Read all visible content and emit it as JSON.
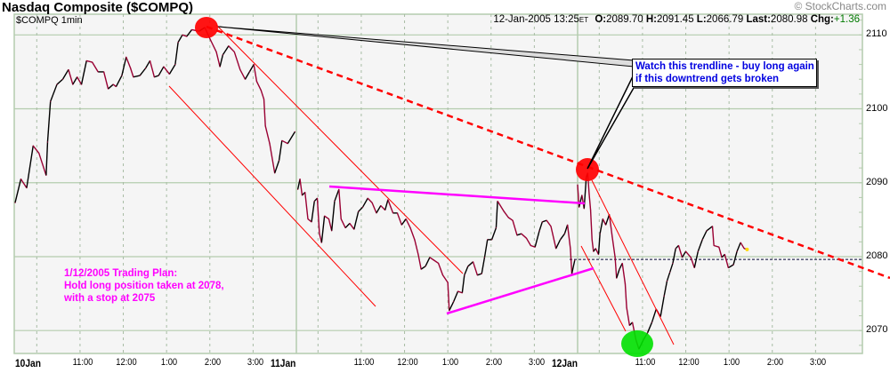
{
  "header": {
    "title": "Nasdaq Composite ($COMPQ)",
    "copyright": "© StockCharts.com"
  },
  "quote": {
    "symbol_interval": "$COMPQ 1min",
    "datetime": "12-Jan-2005 13:25",
    "tz": "ET",
    "open_label": "O:",
    "open": "2089.70",
    "high_label": "H:",
    "high": "2091.45",
    "low_label": "L:",
    "low": "2066.79",
    "last_label": "Last:",
    "last": "2080.98",
    "chg_label": "Chg:",
    "chg": "+1.36"
  },
  "annotations": {
    "callout": [
      "Watch this trendline - buy long again",
      "if this downtrend gets broken"
    ],
    "plan": [
      "1/12/2005 Trading Plan:",
      "Hold long position taken at 2078,",
      "with a stop at 2075"
    ]
  },
  "colors": {
    "up": "#000000",
    "down": "#990033",
    "grid": "#b4ccae",
    "plot_bg": "#f5f5f5",
    "trend_red": "#ff0000",
    "trend_magenta": "#ff00ff",
    "callout_text": "#0000e0",
    "change_positive": "#007a00",
    "low_marker": "#00e000"
  },
  "chart_data": {
    "type": "line",
    "title": "Nasdaq Composite ($COMPQ)",
    "interval": "1min",
    "ylim": [
      2066.9,
      2112.8
    ],
    "yticks": [
      2070,
      2080,
      2090,
      2100,
      2110
    ],
    "grid": true,
    "reference_line": 2079.62,
    "xticks": [
      {
        "label": "10Jan",
        "day": 0,
        "at": "09:30",
        "bold": true
      },
      {
        "label": "11:00",
        "day": 0,
        "at": "11:00"
      },
      {
        "label": "12:00",
        "day": 0,
        "at": "12:00"
      },
      {
        "label": "1:00",
        "day": 0,
        "at": "13:00"
      },
      {
        "label": "2:00",
        "day": 0,
        "at": "14:00"
      },
      {
        "label": "3:00",
        "day": 0,
        "at": "15:00"
      },
      {
        "label": "11Jan",
        "day": 1,
        "at": "09:30",
        "bold": true
      },
      {
        "label": "11:00",
        "day": 1,
        "at": "11:00"
      },
      {
        "label": "12:00",
        "day": 1,
        "at": "12:00"
      },
      {
        "label": "1:00",
        "day": 1,
        "at": "13:00"
      },
      {
        "label": "2:00",
        "day": 1,
        "at": "14:00"
      },
      {
        "label": "3:00",
        "day": 1,
        "at": "15:00"
      },
      {
        "label": "12Jan",
        "day": 2,
        "at": "09:30",
        "bold": true
      },
      {
        "label": "11:00",
        "day": 2,
        "at": "11:00"
      },
      {
        "label": "12:00",
        "day": 2,
        "at": "12:00"
      },
      {
        "label": "1:00",
        "day": 2,
        "at": "13:00"
      },
      {
        "label": "2:00",
        "day": 2,
        "at": "14:00"
      },
      {
        "label": "3:00",
        "day": 2,
        "at": "15:00"
      }
    ],
    "days": [
      {
        "date": "10-Jan",
        "points": [
          [
            "09:30",
            2087.3
          ],
          [
            "09:38",
            2090.5
          ],
          [
            "09:46",
            2089.3
          ],
          [
            "09:55",
            2095.0
          ],
          [
            "10:03",
            2094.0
          ],
          [
            "10:13",
            2091.0
          ],
          [
            "10:15",
            2095.5
          ],
          [
            "10:19",
            2101.0
          ],
          [
            "10:28",
            2103.3
          ],
          [
            "10:36",
            2104.0
          ],
          [
            "10:44",
            2105.3
          ],
          [
            "10:50",
            2103.3
          ],
          [
            "10:56",
            2104.3
          ],
          [
            "11:02",
            2103.3
          ],
          [
            "11:09",
            2106.5
          ],
          [
            "11:17",
            2106.3
          ],
          [
            "11:25",
            2105.0
          ],
          [
            "11:33",
            2105.0
          ],
          [
            "11:39",
            2102.7
          ],
          [
            "11:46",
            2103.3
          ],
          [
            "11:50",
            2103.0
          ],
          [
            "11:58",
            2104.5
          ],
          [
            "12:04",
            2107.0
          ],
          [
            "12:10",
            2105.5
          ],
          [
            "12:14",
            2104.3
          ],
          [
            "12:23",
            2104.5
          ],
          [
            "12:31",
            2105.5
          ],
          [
            "12:37",
            2106.5
          ],
          [
            "12:43",
            2104.3
          ],
          [
            "12:49",
            2104.5
          ],
          [
            "12:56",
            2105.7
          ],
          [
            "13:04",
            2104.7
          ],
          [
            "13:12",
            2106.0
          ],
          [
            "13:16",
            2109.0
          ],
          [
            "13:22",
            2110.0
          ],
          [
            "13:28",
            2109.8
          ],
          [
            "13:35",
            2110.7
          ],
          [
            "13:45",
            2110.5
          ],
          [
            "13:53",
            2111.0
          ],
          [
            "14:01",
            2109.3
          ],
          [
            "14:09",
            2107.7
          ],
          [
            "14:14",
            2105.7
          ],
          [
            "14:18",
            2107.3
          ],
          [
            "14:26",
            2108.5
          ],
          [
            "14:34",
            2107.7
          ],
          [
            "14:42",
            2105.3
          ],
          [
            "14:49",
            2104.0
          ],
          [
            "14:55",
            2105.0
          ],
          [
            "15:01",
            2106.0
          ],
          [
            "15:05",
            2103.7
          ],
          [
            "15:11",
            2102.5
          ],
          [
            "15:15",
            2101.3
          ],
          [
            "15:17",
            2097.7
          ],
          [
            "15:23",
            2095.3
          ],
          [
            "15:30",
            2091.3
          ],
          [
            "15:36",
            2093.0
          ],
          [
            "15:40",
            2095.7
          ],
          [
            "15:48",
            2095.3
          ],
          [
            "15:58",
            2096.9
          ]
        ]
      },
      {
        "date": "11-Jan",
        "points": [
          [
            "09:32",
            2089.1
          ],
          [
            "09:35",
            2090.5
          ],
          [
            "09:38",
            2088.3
          ],
          [
            "09:42",
            2088.7
          ],
          [
            "09:46",
            2085.1
          ],
          [
            "09:51",
            2084.7
          ],
          [
            "09:55",
            2087.5
          ],
          [
            "09:59",
            2087.9
          ],
          [
            "10:02",
            2083.1
          ],
          [
            "10:05",
            2081.9
          ],
          [
            "10:09",
            2085.5
          ],
          [
            "10:15",
            2085.1
          ],
          [
            "10:19",
            2083.5
          ],
          [
            "10:23",
            2087.5
          ],
          [
            "10:29",
            2089.1
          ],
          [
            "10:32",
            2085.1
          ],
          [
            "10:38",
            2083.9
          ],
          [
            "10:44",
            2084.5
          ],
          [
            "10:50",
            2083.7
          ],
          [
            "10:56",
            2086.1
          ],
          [
            "11:02",
            2086.7
          ],
          [
            "11:09",
            2087.9
          ],
          [
            "11:15",
            2087.3
          ],
          [
            "11:21",
            2085.9
          ],
          [
            "11:27",
            2086.9
          ],
          [
            "11:33",
            2086.3
          ],
          [
            "11:37",
            2087.7
          ],
          [
            "11:44",
            2085.9
          ],
          [
            "11:50",
            2085.9
          ],
          [
            "11:56",
            2084.3
          ],
          [
            "12:02",
            2085.1
          ],
          [
            "12:08",
            2083.9
          ],
          [
            "12:14",
            2082.3
          ],
          [
            "12:19",
            2080.3
          ],
          [
            "12:23",
            2078.3
          ],
          [
            "12:29",
            2078.7
          ],
          [
            "12:35",
            2079.9
          ],
          [
            "12:41",
            2079.5
          ],
          [
            "12:47",
            2079.1
          ],
          [
            "12:53",
            2077.5
          ],
          [
            "13:00",
            2076.5
          ],
          [
            "13:02",
            2072.7
          ],
          [
            "13:08",
            2073.9
          ],
          [
            "13:14",
            2075.3
          ],
          [
            "13:20",
            2075.1
          ],
          [
            "13:23",
            2077.5
          ],
          [
            "13:28",
            2078.7
          ],
          [
            "13:35",
            2079.3
          ],
          [
            "13:41",
            2077.5
          ],
          [
            "13:47",
            2077.7
          ],
          [
            "13:51",
            2079.9
          ],
          [
            "13:55",
            2082.3
          ],
          [
            "14:01",
            2082.3
          ],
          [
            "14:07",
            2083.9
          ],
          [
            "14:09",
            2087.5
          ],
          [
            "14:18",
            2086.1
          ],
          [
            "14:24",
            2085.3
          ],
          [
            "14:30",
            2084.9
          ],
          [
            "14:36",
            2082.9
          ],
          [
            "14:42",
            2083.1
          ],
          [
            "14:49",
            2082.5
          ],
          [
            "14:55",
            2081.5
          ],
          [
            "15:01",
            2081.3
          ],
          [
            "15:07",
            2083.5
          ],
          [
            "15:11",
            2084.7
          ],
          [
            "15:17",
            2084.9
          ],
          [
            "15:23",
            2084.1
          ],
          [
            "15:30",
            2081.1
          ],
          [
            "15:36",
            2082.3
          ],
          [
            "15:42",
            2083.1
          ],
          [
            "15:46",
            2084.3
          ],
          [
            "15:50",
            2081.1
          ],
          [
            "15:52",
            2077.7
          ],
          [
            "15:56",
            2079.5
          ]
        ]
      },
      {
        "date": "12-Jan",
        "points": [
          [
            "09:30",
            2089.7
          ],
          [
            "09:32",
            2086.7
          ],
          [
            "09:36",
            2088.3
          ],
          [
            "09:39",
            2086.5
          ],
          [
            "09:42",
            2090.7
          ],
          [
            "09:44",
            2091.3
          ],
          [
            "09:46",
            2088.5
          ],
          [
            "09:48",
            2086.3
          ],
          [
            "09:50",
            2082.3
          ],
          [
            "09:52",
            2080.7
          ],
          [
            "09:55",
            2081.1
          ],
          [
            "09:59",
            2080.3
          ],
          [
            "10:01",
            2083.1
          ],
          [
            "10:05",
            2085.1
          ],
          [
            "10:09",
            2084.3
          ],
          [
            "10:14",
            2085.7
          ],
          [
            "10:18",
            2082.7
          ],
          [
            "10:22",
            2079.9
          ],
          [
            "10:24",
            2077.1
          ],
          [
            "10:28",
            2078.3
          ],
          [
            "10:32",
            2079.1
          ],
          [
            "10:36",
            2076.3
          ],
          [
            "10:38",
            2073.1
          ],
          [
            "10:42",
            2070.7
          ],
          [
            "10:46",
            2071.1
          ],
          [
            "10:51",
            2068.7
          ],
          [
            "10:55",
            2067.5
          ],
          [
            "11:01",
            2068.7
          ],
          [
            "11:07",
            2069.7
          ],
          [
            "11:13",
            2071.1
          ],
          [
            "11:19",
            2072.9
          ],
          [
            "11:25",
            2071.9
          ],
          [
            "11:30",
            2074.7
          ],
          [
            "11:34",
            2076.7
          ],
          [
            "11:38",
            2077.9
          ],
          [
            "11:42",
            2079.1
          ],
          [
            "11:46",
            2081.1
          ],
          [
            "11:50",
            2081.5
          ],
          [
            "11:55",
            2079.9
          ],
          [
            "12:00",
            2080.7
          ],
          [
            "12:07",
            2079.9
          ],
          [
            "12:12",
            2078.5
          ],
          [
            "12:17",
            2080.7
          ],
          [
            "12:23",
            2082.3
          ],
          [
            "12:29",
            2083.5
          ],
          [
            "12:37",
            2084.1
          ],
          [
            "12:39",
            2081.5
          ],
          [
            "12:46",
            2081.3
          ],
          [
            "12:50",
            2079.9
          ],
          [
            "12:54",
            2080.3
          ],
          [
            "12:59",
            2078.5
          ],
          [
            "13:06",
            2078.9
          ],
          [
            "13:11",
            2080.7
          ],
          [
            "13:16",
            2081.9
          ],
          [
            "13:21",
            2081.1
          ],
          [
            "13:25",
            2080.98
          ]
        ]
      }
    ]
  }
}
